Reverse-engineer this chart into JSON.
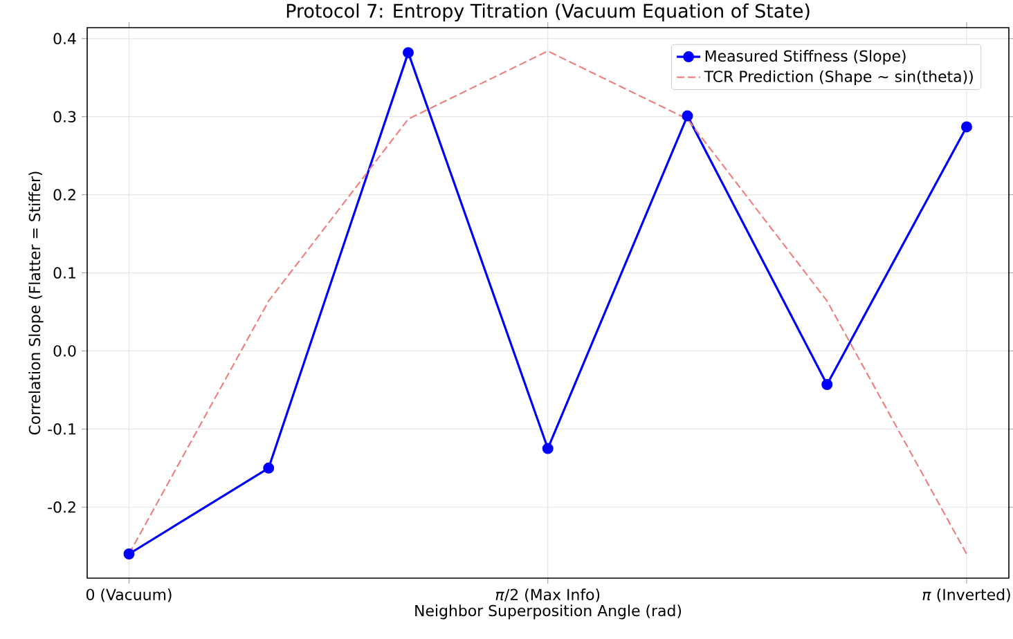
{
  "chart_data": {
    "type": "line",
    "title": "Protocol 7: Entropy Titration (Vacuum Equation of State)",
    "xlabel": "Neighbor Superposition Angle (rad)",
    "ylabel": "Correlation Slope (Flatter = Stiffer)",
    "x": [
      0,
      0.5236,
      1.0472,
      1.5708,
      2.0944,
      2.618,
      3.1416
    ],
    "series": [
      {
        "name": "Measured Stiffness (Slope)",
        "color": "#0000ff",
        "marker": "circle",
        "line_style": "solid",
        "values": [
          -0.26,
          -0.15,
          0.382,
          -0.125,
          0.301,
          -0.043,
          0.287
        ]
      },
      {
        "name": "TCR Prediction (Shape ~ sin(theta))",
        "color": "#f08080",
        "marker": "none",
        "line_style": "dashed",
        "values": [
          -0.26,
          0.064,
          0.297,
          0.384,
          0.297,
          0.064,
          -0.26
        ]
      }
    ],
    "xlim": [
      -0.157,
      3.3
    ],
    "ylim": [
      -0.291,
      0.414
    ],
    "xticks": [
      {
        "value": 0,
        "label": "0 (Vacuum)"
      },
      {
        "value": 1.5708,
        "label": "*π*/2 (Max Info)"
      },
      {
        "value": 3.1416,
        "label": "*π* (Inverted)"
      }
    ],
    "yticks": [
      -0.2,
      -0.1,
      {
        "value": 0,
        "label": "0.0"
      },
      0.1,
      0.2,
      0.3,
      0.4
    ],
    "grid": true,
    "legend": "top right"
  }
}
